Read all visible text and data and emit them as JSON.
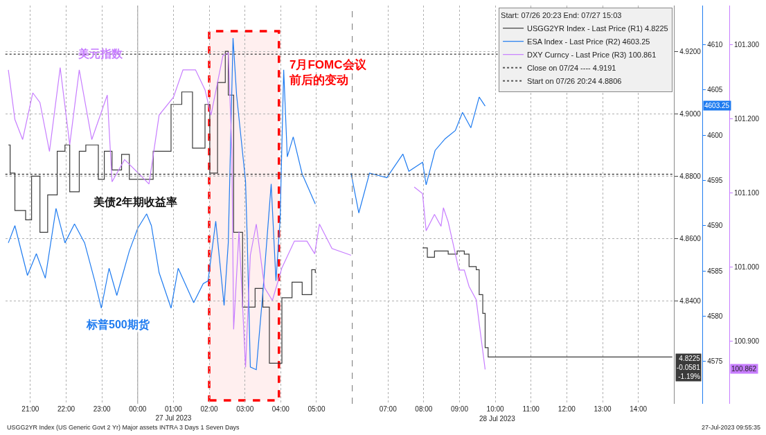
{
  "chart_data": {
    "type": "line",
    "xlim": [
      "2023-07-26T20:18",
      "2023-07-27T15:00"
    ],
    "xticks": [
      {
        "value": "2023-07-26T21:00",
        "label": "21:00"
      },
      {
        "value": "2023-07-26T22:00",
        "label": "22:00"
      },
      {
        "value": "2023-07-26T23:00",
        "label": "23:00"
      },
      {
        "value": "2023-07-27T00:00",
        "label": "00:00"
      },
      {
        "value": "2023-07-27T01:00",
        "label": "01:00\n27 Jul 2023"
      },
      {
        "value": "2023-07-27T02:00",
        "label": "02:00"
      },
      {
        "value": "2023-07-27T03:00",
        "label": "03:00"
      },
      {
        "value": "2023-07-27T04:00",
        "label": "04:00"
      },
      {
        "value": "2023-07-27T05:00",
        "label": "05:00"
      },
      {
        "value": "2023-07-27T07:00",
        "label": "07:00"
      },
      {
        "value": "2023-07-27T08:00",
        "label": "08:00"
      },
      {
        "value": "2023-07-27T09:00",
        "label": "09:00"
      },
      {
        "value": "2023-07-27T10:00",
        "label": "10:00"
      },
      {
        "value": "2023-07-27T11:00",
        "label": "11:00"
      },
      {
        "value": "2023-07-27T12:00",
        "label": "12:00"
      },
      {
        "value": "2023-07-27T13:00",
        "label": "13:00"
      },
      {
        "value": "2023-07-27T14:00",
        "label": "14:00"
      }
    ],
    "ylim": [
      4.807,
      4.9347
    ],
    "yticks": [
      {
        "value": 4.84,
        "label": "4.8400"
      },
      {
        "value": 4.86,
        "label": "4.8600"
      },
      {
        "value": 4.88,
        "label": "4.8800"
      },
      {
        "value": 4.9,
        "label": "4.9000"
      },
      {
        "value": 4.92,
        "label": "4.9200"
      }
    ],
    "y2lim": [
      4570.33,
      4614.3
    ],
    "y2ticks": [
      4575,
      4580,
      4585,
      4590,
      4595,
      4600,
      4605,
      4610
    ],
    "y3lim": [
      100.8156,
      101.3527
    ],
    "y3ticks": [
      {
        "value": 100.9,
        "label": "100.900"
      },
      {
        "value": 101.0,
        "label": "101.000"
      },
      {
        "value": 101.1,
        "label": "101.100"
      },
      {
        "value": 101.2,
        "label": "101.200"
      },
      {
        "value": 101.3,
        "label": "101.300"
      }
    ],
    "grid": true,
    "legend": "top right",
    "legend_title": "Start: 07/26 20:23 End: 07/27 15:03",
    "series": [
      {
        "name": "USGG2YR Index - Last Price (R1) 4.8225",
        "type": "step",
        "axis": "y",
        "color": "#3a3a3a",
        "x": [
          "2023-07-26T20:23",
          "2023-07-26T20:26",
          "2023-07-26T20:34",
          "2023-07-26T20:52",
          "2023-07-26T21:02",
          "2023-07-26T21:16",
          "2023-07-26T21:29",
          "2023-07-26T21:45",
          "2023-07-26T21:58",
          "2023-07-26T22:06",
          "2023-07-26T22:22",
          "2023-07-26T22:33",
          "2023-07-26T22:54",
          "2023-07-26T23:04",
          "2023-07-26T23:17",
          "2023-07-26T23:33",
          "2023-07-26T23:46",
          "2023-07-27T00:15",
          "2023-07-27T00:26",
          "2023-07-27T00:56",
          "2023-07-27T01:14",
          "2023-07-27T01:32",
          "2023-07-27T01:53",
          "2023-07-27T02:01",
          "2023-07-27T02:14",
          "2023-07-27T02:27",
          "2023-07-27T02:32",
          "2023-07-27T02:41",
          "2023-07-27T02:56",
          "2023-07-27T03:04",
          "2023-07-27T03:17",
          "2023-07-27T03:30",
          "2023-07-27T03:41",
          "2023-07-27T03:56",
          "2023-07-27T04:02",
          "2023-07-27T04:19",
          "2023-07-27T04:36",
          "2023-07-27T04:52",
          "2023-07-27T04:58",
          "2023-07-27T06:00",
          "2023-07-27T07:58",
          "2023-07-27T08:06",
          "2023-07-27T08:18",
          "2023-07-27T08:41",
          "2023-07-27T08:56",
          "2023-07-27T09:08",
          "2023-07-27T09:16",
          "2023-07-27T09:28",
          "2023-07-27T09:33",
          "2023-07-27T09:39",
          "2023-07-27T09:43",
          "2023-07-27T09:48",
          "2023-07-27T09:58",
          "2023-07-27T14:57"
        ],
        "values": [
          4.89,
          4.881,
          4.869,
          4.866,
          4.88,
          4.862,
          4.874,
          4.888,
          4.89,
          4.875,
          4.888,
          4.89,
          4.879,
          4.888,
          4.882,
          4.887,
          4.879,
          4.879,
          4.888,
          4.903,
          4.907,
          4.889,
          4.903,
          4.881,
          4.91,
          4.92,
          4.906,
          4.862,
          4.838,
          4.838,
          4.844,
          4.838,
          4.82,
          4.82,
          4.841,
          4.846,
          4.842,
          4.85,
          4.849,
          null,
          4.857,
          4.854,
          4.856,
          4.855,
          4.856,
          4.855,
          4.851,
          4.85,
          4.842,
          4.836,
          4.825,
          4.822,
          4.822,
          4.822
        ]
      },
      {
        "name": "ESA Index - Last Price (R2) 4603.25",
        "axis": "y2",
        "color": "#1e7bf0",
        "x": [
          "2023-07-26T20:23",
          "2023-07-26T20:34",
          "2023-07-26T20:52",
          "2023-07-26T20:55",
          "2023-07-26T21:10",
          "2023-07-26T21:25",
          "2023-07-26T21:43",
          "2023-07-26T21:58",
          "2023-07-26T22:14",
          "2023-07-26T22:31",
          "2023-07-26T22:48",
          "2023-07-26T22:59",
          "2023-07-26T23:12",
          "2023-07-26T23:25",
          "2023-07-26T23:46",
          "2023-07-27T00:00",
          "2023-07-27T00:15",
          "2023-07-27T00:23",
          "2023-07-27T00:36",
          "2023-07-27T00:56",
          "2023-07-27T01:08",
          "2023-07-27T01:34",
          "2023-07-27T01:50",
          "2023-07-27T01:58",
          "2023-07-27T02:11",
          "2023-07-27T02:25",
          "2023-07-27T02:32",
          "2023-07-27T02:40",
          "2023-07-27T02:46",
          "2023-07-27T03:01",
          "2023-07-27T03:04",
          "2023-07-27T03:09",
          "2023-07-27T03:19",
          "2023-07-27T03:30",
          "2023-07-27T03:44",
          "2023-07-27T03:52",
          "2023-07-27T03:59",
          "2023-07-27T04:05",
          "2023-07-27T04:11",
          "2023-07-27T04:21",
          "2023-07-27T04:36",
          "2023-07-27T04:58",
          "2023-07-27T05:30",
          "2023-07-27T05:58",
          "2023-07-27T06:11",
          "2023-07-27T06:29",
          "2023-07-27T06:58",
          "2023-07-27T07:25",
          "2023-07-27T07:35",
          "2023-07-27T07:58",
          "2023-07-27T08:04",
          "2023-07-27T08:19",
          "2023-07-27T08:36",
          "2023-07-27T08:53",
          "2023-07-27T09:05",
          "2023-07-27T09:19",
          "2023-07-27T09:33",
          "2023-07-27T09:43"
        ],
        "values": [
          4588.1,
          4590.0,
          4585.3,
          4584.5,
          4586.9,
          4584.2,
          4591.9,
          4588.1,
          4590.2,
          4588.1,
          4583.9,
          4580.9,
          4585.3,
          4582.3,
          4587.2,
          4589.7,
          4591.3,
          4590.0,
          4584.8,
          4580.9,
          4585.3,
          4581.5,
          4583.6,
          4583.9,
          4590.5,
          4581.2,
          4588.1,
          4610.7,
          4604.4,
          4594.9,
          4588.1,
          4574.4,
          4574.1,
          4582.6,
          4594.6,
          4583.9,
          4590.7,
          4607.2,
          4597.6,
          4599.8,
          4595.7,
          4592.4,
          null,
          4595.8,
          4591.4,
          4595.8,
          4595.3,
          4597.9,
          4596.0,
          4597.0,
          4594.5,
          4598.3,
          4599.6,
          4600.5,
          4602.5,
          4600.8,
          4604.2,
          4603.2
        ]
      },
      {
        "name": "DXY Curncy - Last Price (R3) 100.861",
        "axis": "y3",
        "color": "#c77dff",
        "x": [
          "2023-07-26T20:23",
          "2023-07-26T20:34",
          "2023-07-26T20:47",
          "2023-07-26T21:04",
          "2023-07-26T21:16",
          "2023-07-26T21:32",
          "2023-07-26T21:50",
          "2023-07-26T22:06",
          "2023-07-26T22:22",
          "2023-07-26T22:43",
          "2023-07-26T23:09",
          "2023-07-26T23:17",
          "2023-07-26T23:38",
          "2023-07-27T00:02",
          "2023-07-27T00:19",
          "2023-07-27T00:36",
          "2023-07-27T01:00",
          "2023-07-27T01:16",
          "2023-07-27T01:37",
          "2023-07-27T01:53",
          "2023-07-27T02:03",
          "2023-07-27T02:23",
          "2023-07-27T02:32",
          "2023-07-27T02:38",
          "2023-07-27T02:41",
          "2023-07-27T02:50",
          "2023-07-27T03:01",
          "2023-07-27T03:09",
          "2023-07-27T03:19",
          "2023-07-27T03:33",
          "2023-07-27T03:46",
          "2023-07-27T04:02",
          "2023-07-27T04:23",
          "2023-07-27T04:44",
          "2023-07-27T04:57",
          "2023-07-27T05:05",
          "2023-07-27T05:26",
          "2023-07-27T05:58",
          "2023-07-27T07:00",
          "2023-07-27T07:44",
          "2023-07-27T07:58",
          "2023-07-27T08:04",
          "2023-07-27T08:18",
          "2023-07-27T08:29",
          "2023-07-27T08:33",
          "2023-07-27T08:41",
          "2023-07-27T08:48",
          "2023-07-27T08:59",
          "2023-07-27T09:08",
          "2023-07-27T09:16",
          "2023-07-27T09:28",
          "2023-07-27T09:34",
          "2023-07-27T09:43"
        ],
        "values": [
          101.266,
          101.199,
          101.172,
          101.235,
          101.222,
          101.156,
          101.269,
          101.165,
          101.266,
          101.172,
          101.232,
          101.115,
          101.145,
          101.126,
          101.112,
          101.205,
          101.229,
          101.266,
          101.266,
          101.239,
          101.205,
          101.285,
          101.289,
          101.158,
          100.916,
          101.048,
          100.865,
          101.016,
          101.058,
          100.972,
          100.955,
          100.999,
          101.035,
          101.035,
          101.018,
          101.058,
          101.025,
          101.016,
          null,
          101.108,
          101.099,
          101.049,
          101.071,
          101.055,
          101.08,
          101.061,
          101.036,
          100.996,
          100.996,
          100.974,
          100.956,
          100.918,
          100.862
        ]
      }
    ],
    "ref_lines": [
      {
        "axis": "y",
        "value": 4.9191,
        "label": "Close on 07/24 ---- 4.9191",
        "color": "#555555",
        "line_style": "dotted"
      },
      {
        "axis": "y",
        "value": 4.8806,
        "label": "Start on 07/26 20:24 4.8806",
        "color": "#555555",
        "line_style": "dotted"
      },
      {
        "axis": "x",
        "value": "2023-07-27T00:00",
        "color": "#aaaaaa",
        "line_style": "solid"
      },
      {
        "axis": "x",
        "value": "2023-07-27T06:00",
        "color": "#888888",
        "line_style": "dashed"
      }
    ],
    "bands": [
      {
        "axis": "x",
        "from": "2023-07-27T02:00",
        "to": "2023-07-27T03:57",
        "label": "7月FOMC会议前后的变动",
        "color": "#ff0000"
      }
    ],
    "annotations": [
      "美元指数",
      "美债2年期收益率",
      "标普500期货",
      "4603.25",
      "100.862",
      "4.8225\n-0.0581\n-1.19%",
      "USGG2YR Index (US Generic Govt 2 Yr) Major assets INTRA 3 Days 1 Seven Days",
      "27-Jul-2023 09:55:35",
      "28 Jul 2023"
    ]
  }
}
